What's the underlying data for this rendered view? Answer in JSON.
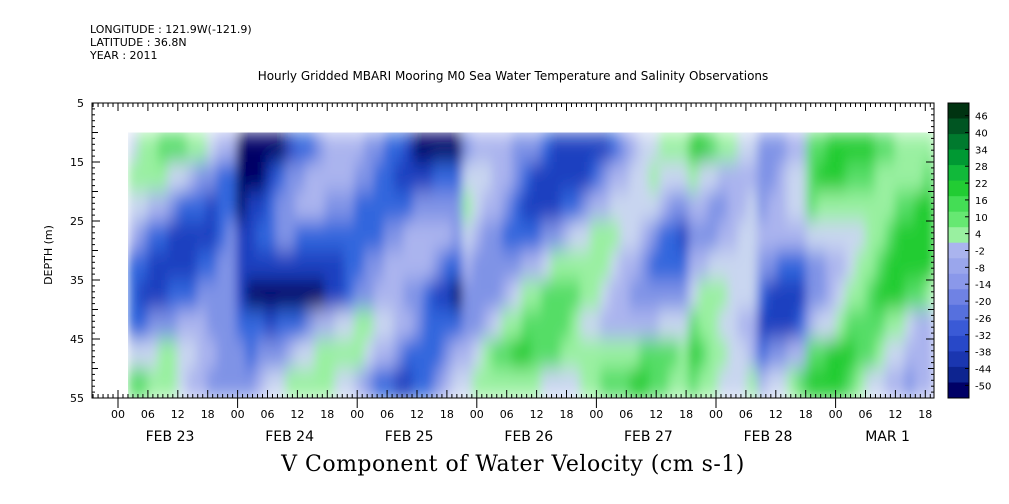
{
  "header": {
    "longitude": "LONGITUDE : 121.9W(-121.9)",
    "latitude": "LATITUDE : 36.8N",
    "year": "YEAR : 2011"
  },
  "title": "Hourly Gridded MBARI Mooring M0 Sea Water Temperature and Salinity Observations",
  "bottom_title": "V Component of Water Velocity (cm s-1)",
  "chart_data": {
    "type": "heatmap",
    "title": "Hourly Gridded MBARI Mooring M0 Sea Water Temperature and Salinity Observations",
    "xlabel": "",
    "ylabel": "DEPTH (m)",
    "colorbar_label": "V Component of Water Velocity (cm s-1)",
    "y_ticks": [
      5,
      15,
      25,
      35,
      45,
      55
    ],
    "y_range": [
      5,
      55
    ],
    "y_inverted": true,
    "x_hour_ticks": [
      "00",
      "06",
      "12",
      "18",
      "00",
      "06",
      "12",
      "18",
      "00",
      "06",
      "12",
      "18",
      "00",
      "06",
      "12",
      "18",
      "00",
      "06",
      "12",
      "18",
      "00",
      "06",
      "12",
      "18",
      "00",
      "06",
      "12",
      "18"
    ],
    "x_day_labels": [
      "FEB 23",
      "FEB 24",
      "FEB 25",
      "FEB 26",
      "FEB 27",
      "FEB 28",
      "MAR  1"
    ],
    "colorbar_ticks": [
      "46",
      "40",
      "34",
      "28",
      "22",
      "16",
      "10",
      "4",
      "-2",
      "-8",
      "-14",
      "-20",
      "-26",
      "-32",
      "-38",
      "-44",
      "-50"
    ],
    "color_low": "#000066",
    "color_mid_blue": "#3366dd",
    "color_light_blue": "#aab4ee",
    "color_light_green": "#99f0a0",
    "color_green": "#22cc33",
    "color_high": "#005522",
    "data_depth_range": [
      10,
      55
    ],
    "grid": false
  }
}
